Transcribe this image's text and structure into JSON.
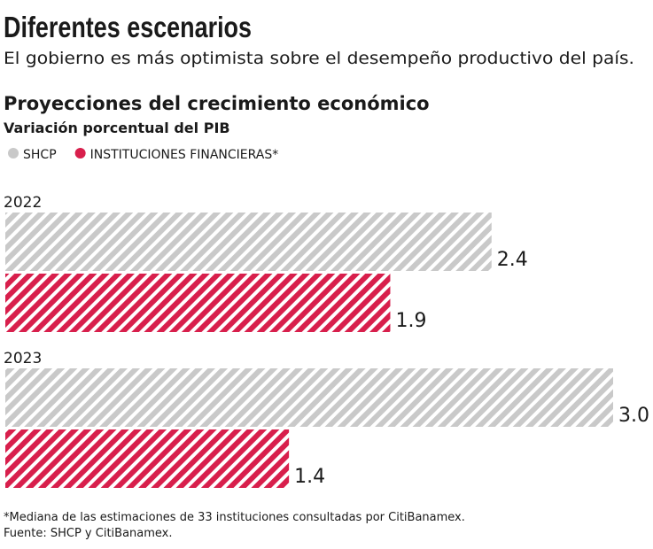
{
  "chart_data": {
    "type": "bar",
    "orientation": "horizontal",
    "title": "Diferentes escenarios",
    "subtitle": "El gobierno es más optimista sobre el desempeño productivo del país.",
    "chart_title": "Proyecciones del crecimiento económico",
    "chart_subtitle": "Variación porcentual del PIB",
    "categories": [
      "2022",
      "2023"
    ],
    "series": [
      {
        "name": "SHCP",
        "color": "#c9c9c9",
        "values": [
          2.4,
          3.0
        ],
        "value_labels": [
          "2.4",
          "3.0"
        ]
      },
      {
        "name": "INSTITUCIONES FINANCIERAS*",
        "color": "#d81f4c",
        "values": [
          1.9,
          1.4
        ],
        "value_labels": [
          "1.9",
          "1.4"
        ]
      }
    ],
    "notes": [
      "*Mediana de las estimaciones de 33 instituciones consultadas por CitiBanamex.",
      "Fuente: SHCP y CitiBanamex."
    ]
  }
}
